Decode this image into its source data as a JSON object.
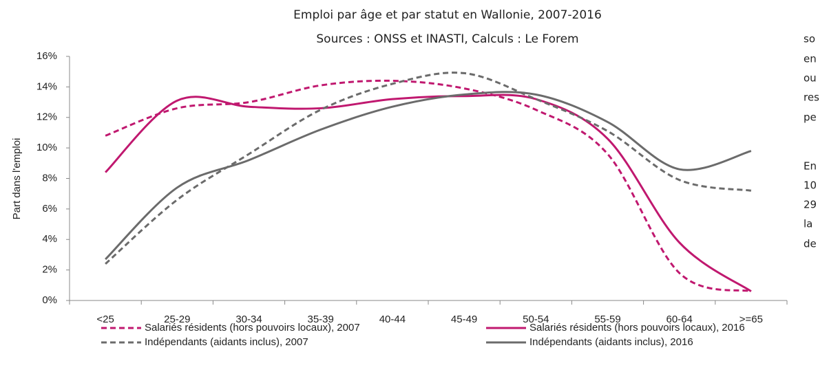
{
  "chart_data": {
    "type": "line",
    "title": "Emploi par âge et par statut en Wallonie, 2007-2016",
    "subtitle": "Sources : ONSS et INASTI, Calculs : Le Forem",
    "y_label": "Part dans l'emploi",
    "categories": [
      "<25",
      "25-29",
      "30-34",
      "35-39",
      "40-44",
      "45-49",
      "50-54",
      "55-59",
      "60-64",
      ">=65"
    ],
    "series": [
      {
        "name": "Salariés résidents (hors pouvoirs locaux), 2007",
        "color": "#c0186f",
        "dash": true,
        "values": [
          10.8,
          12.6,
          13.0,
          14.1,
          14.4,
          13.9,
          12.5,
          9.6,
          1.8,
          0.6
        ]
      },
      {
        "name": "Salariés résidents (hors pouvoirs locaux), 2016",
        "color": "#c0186f",
        "dash": false,
        "values": [
          8.4,
          13.1,
          12.7,
          12.6,
          13.2,
          13.4,
          13.2,
          10.6,
          3.8,
          0.6
        ]
      },
      {
        "name": "Indépendants (aidants inclus), 2007",
        "color": "#6b6b6b",
        "dash": true,
        "values": [
          2.4,
          6.6,
          9.6,
          12.5,
          14.2,
          14.9,
          13.2,
          11.1,
          7.9,
          7.2
        ]
      },
      {
        "name": "Indépendants (aidants inclus), 2016",
        "color": "#6b6b6b",
        "dash": false,
        "values": [
          2.7,
          7.4,
          9.2,
          11.2,
          12.7,
          13.5,
          13.5,
          11.7,
          8.6,
          9.8
        ]
      }
    ],
    "ylim": [
      0,
      16
    ],
    "yticks": [
      {
        "value": 0,
        "label": "0%"
      },
      {
        "value": 2,
        "label": "2%"
      },
      {
        "value": 4,
        "label": "4%"
      },
      {
        "value": 6,
        "label": "6%"
      },
      {
        "value": 8,
        "label": "8%"
      },
      {
        "value": 10,
        "label": "10%"
      },
      {
        "value": 12,
        "label": "12%"
      },
      {
        "value": 14,
        "label": "14%"
      },
      {
        "value": 16,
        "label": "16%"
      }
    ],
    "grid": false,
    "smooth": true,
    "legend": "bottom"
  },
  "side_text": [
    "so",
    "en",
    "ou",
    "res",
    "pe",
    "En",
    "10",
    "29",
    "la",
    "de"
  ]
}
